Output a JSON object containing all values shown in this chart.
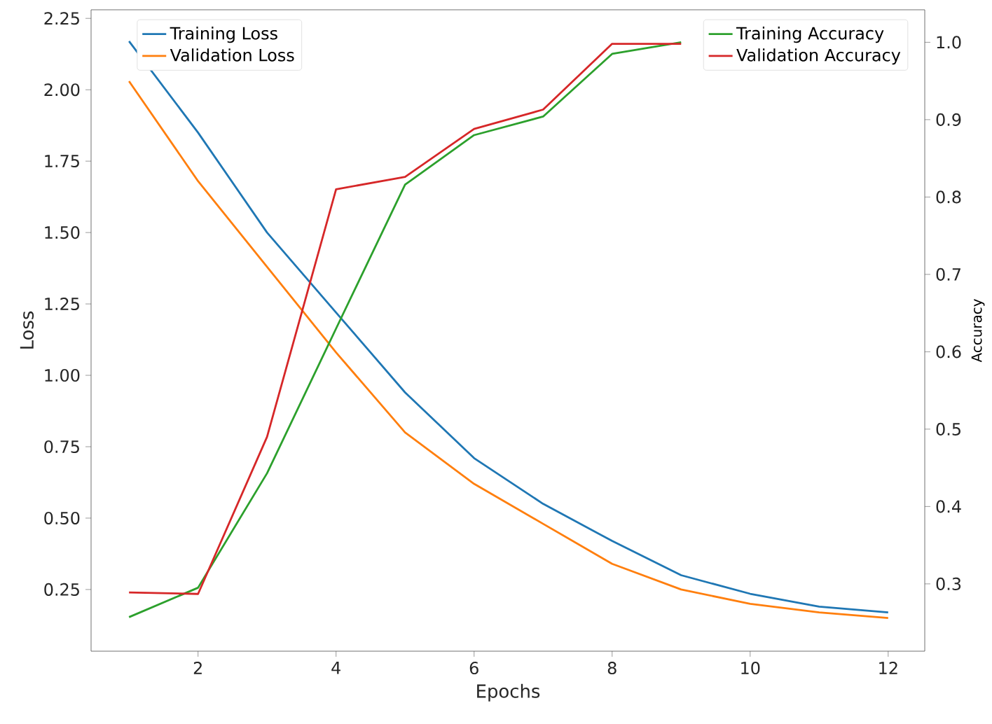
{
  "chart_data": {
    "type": "line",
    "xlabel": "Epochs",
    "ylabel": "Loss",
    "y2label": "Accuracy",
    "x": [
      1,
      2,
      3,
      4,
      5,
      6,
      7,
      8,
      9,
      10,
      11,
      12
    ],
    "xlim": [
      0.45,
      12.53
    ],
    "xticks": [
      2,
      4,
      6,
      8,
      10,
      12
    ],
    "ylim": [
      0.034,
      2.28
    ],
    "yticks": [
      0.25,
      {
        "value": 0.5,
        "label": "0.50"
      },
      0.75,
      {
        "value": 1.0,
        "label": "1.00"
      },
      1.25,
      {
        "value": 1.5,
        "label": "1.50"
      },
      1.75,
      {
        "value": 2.0,
        "label": "2.00"
      },
      2.25
    ],
    "y2lim": [
      0.213,
      1.042
    ],
    "y2ticks": [
      0.3,
      0.4,
      0.5,
      0.6,
      0.7,
      0.8,
      0.9,
      {
        "value": 1.0,
        "label": "1.0"
      }
    ],
    "legend": "top left",
    "grid": false,
    "marker": "none",
    "line_style": "solid",
    "series": [
      {
        "name": "Training Loss",
        "color": "#1f77b4",
        "values": [
          2.17,
          1.85,
          1.5,
          1.22,
          0.94,
          0.71,
          0.55,
          0.42,
          0.3,
          0.235,
          0.19,
          0.17
        ]
      },
      {
        "name": "Validation Loss",
        "color": "#ff7f0e",
        "values": [
          2.03,
          1.68,
          1.38,
          1.08,
          0.8,
          0.62,
          0.48,
          0.34,
          0.25,
          0.2,
          0.17,
          0.15
        ]
      },
      {
        "name": "Training Accuracy",
        "color": "#2ca02c",
        "axis": "y2",
        "values": [
          0.257,
          0.295,
          0.443,
          0.63,
          0.816,
          0.88,
          0.904,
          0.985,
          1.0,
          null,
          null,
          null
        ]
      },
      {
        "name": "Validation Accuracy",
        "color": "#d62728",
        "axis": "y2",
        "values": [
          0.289,
          0.287,
          0.49,
          0.81,
          0.826,
          0.888,
          0.913,
          0.998,
          0.998,
          null,
          null,
          null
        ]
      }
    ]
  }
}
